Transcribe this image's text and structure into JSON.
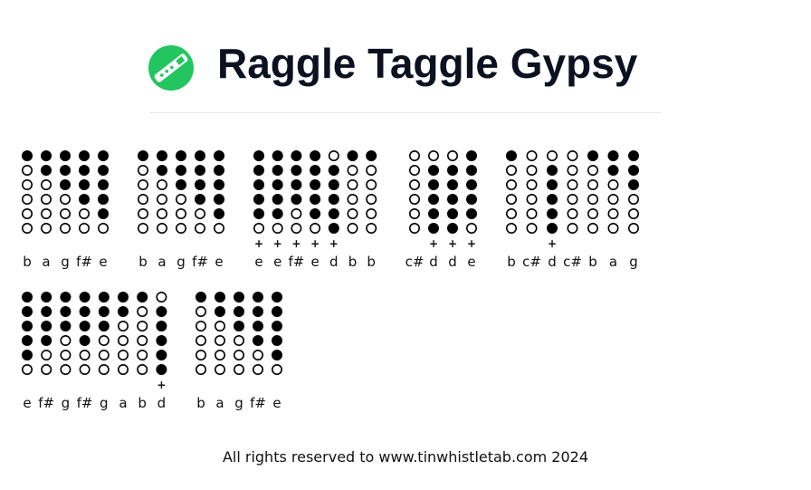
{
  "header": {
    "title": "Raggle Taggle Gypsy"
  },
  "rows": [
    {
      "groups": [
        {
          "notes": [
            {
              "name": "b",
              "holes": [
                1,
                0,
                0,
                0,
                0,
                0
              ]
            },
            {
              "name": "a",
              "holes": [
                1,
                1,
                0,
                0,
                0,
                0
              ]
            },
            {
              "name": "g",
              "holes": [
                1,
                1,
                1,
                0,
                0,
                0
              ]
            },
            {
              "name": "f#",
              "holes": [
                1,
                1,
                1,
                1,
                0,
                0
              ]
            },
            {
              "name": "e",
              "holes": [
                1,
                1,
                1,
                1,
                1,
                0
              ]
            }
          ]
        },
        {
          "notes": [
            {
              "name": "b",
              "holes": [
                1,
                0,
                0,
                0,
                0,
                0
              ]
            },
            {
              "name": "a",
              "holes": [
                1,
                1,
                0,
                0,
                0,
                0
              ]
            },
            {
              "name": "g",
              "holes": [
                1,
                1,
                1,
                0,
                0,
                0
              ]
            },
            {
              "name": "f#",
              "holes": [
                1,
                1,
                1,
                1,
                0,
                0
              ]
            },
            {
              "name": "e",
              "holes": [
                1,
                1,
                1,
                1,
                1,
                0
              ]
            }
          ]
        },
        {
          "notes": [
            {
              "name": "e",
              "holes": [
                1,
                1,
                1,
                1,
                1,
                0
              ],
              "octave": "+"
            },
            {
              "name": "e",
              "holes": [
                1,
                1,
                1,
                1,
                1,
                0
              ],
              "octave": "+"
            },
            {
              "name": "f#",
              "holes": [
                1,
                1,
                1,
                1,
                0,
                0
              ],
              "octave": "+"
            },
            {
              "name": "e",
              "holes": [
                1,
                1,
                1,
                1,
                1,
                0
              ],
              "octave": "+"
            },
            {
              "name": "d",
              "holes": [
                0,
                1,
                1,
                1,
                1,
                1
              ],
              "octave": "+"
            },
            {
              "name": "b",
              "holes": [
                1,
                0,
                0,
                0,
                0,
                0
              ]
            },
            {
              "name": "b",
              "holes": [
                1,
                0,
                0,
                0,
                0,
                0
              ]
            }
          ]
        },
        {
          "notes": [
            {
              "name": "c#",
              "holes": [
                0,
                0,
                0,
                0,
                0,
                0
              ]
            },
            {
              "name": "d",
              "holes": [
                0,
                1,
                1,
                1,
                1,
                1
              ],
              "octave": "+"
            },
            {
              "name": "d",
              "holes": [
                0,
                1,
                1,
                1,
                1,
                1
              ],
              "octave": "+"
            },
            {
              "name": "e",
              "holes": [
                1,
                1,
                1,
                1,
                1,
                0
              ],
              "octave": "+"
            }
          ]
        },
        {
          "notes": [
            {
              "name": "b",
              "holes": [
                1,
                0,
                0,
                0,
                0,
                0
              ]
            },
            {
              "name": "c#",
              "holes": [
                0,
                0,
                0,
                0,
                0,
                0
              ]
            },
            {
              "name": "d",
              "holes": [
                0,
                1,
                1,
                1,
                1,
                1
              ],
              "octave": "+"
            },
            {
              "name": "c#",
              "holes": [
                0,
                0,
                0,
                0,
                0,
                0
              ]
            },
            {
              "name": "b",
              "holes": [
                1,
                0,
                0,
                0,
                0,
                0
              ]
            },
            {
              "name": "a",
              "holes": [
                1,
                1,
                0,
                0,
                0,
                0
              ]
            },
            {
              "name": "g",
              "holes": [
                1,
                1,
                1,
                0,
                0,
                0
              ]
            }
          ]
        }
      ]
    },
    {
      "groups": [
        {
          "notes": [
            {
              "name": "e",
              "holes": [
                1,
                1,
                1,
                1,
                1,
                0
              ]
            },
            {
              "name": "f#",
              "holes": [
                1,
                1,
                1,
                1,
                0,
                0
              ]
            },
            {
              "name": "g",
              "holes": [
                1,
                1,
                1,
                0,
                0,
                0
              ]
            },
            {
              "name": "f#",
              "holes": [
                1,
                1,
                1,
                1,
                0,
                0
              ]
            },
            {
              "name": "g",
              "holes": [
                1,
                1,
                1,
                0,
                0,
                0
              ]
            },
            {
              "name": "a",
              "holes": [
                1,
                1,
                0,
                0,
                0,
                0
              ]
            },
            {
              "name": "b",
              "holes": [
                1,
                0,
                0,
                0,
                0,
                0
              ]
            },
            {
              "name": "d",
              "holes": [
                0,
                1,
                1,
                1,
                1,
                1
              ],
              "octave": "+"
            }
          ]
        },
        {
          "notes": [
            {
              "name": "b",
              "holes": [
                1,
                0,
                0,
                0,
                0,
                0
              ]
            },
            {
              "name": "a",
              "holes": [
                1,
                1,
                0,
                0,
                0,
                0
              ]
            },
            {
              "name": "g",
              "holes": [
                1,
                1,
                1,
                0,
                0,
                0
              ]
            },
            {
              "name": "f#",
              "holes": [
                1,
                1,
                1,
                1,
                0,
                0
              ]
            },
            {
              "name": "e",
              "holes": [
                1,
                1,
                1,
                1,
                1,
                0
              ]
            }
          ]
        }
      ]
    }
  ],
  "footer": {
    "text": "All rights reserved to www.tinwhistletab.com 2024"
  }
}
